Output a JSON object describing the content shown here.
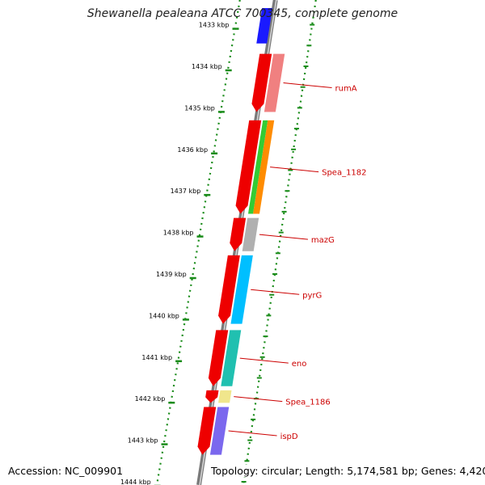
{
  "title": "Shewanella pealeana ATCC 700345, complete genome",
  "footer": {
    "accession": "Accession: NC_009901",
    "topology": "Topology: circular; Length: 5,174,581 bp; Genes: 4,420"
  },
  "ruler": {
    "unit": "kbp",
    "ticks": [
      {
        "value": 1433,
        "label": "1433 kbp"
      },
      {
        "value": 1434,
        "label": "1434 kbp"
      },
      {
        "value": 1435,
        "label": "1435 kbp"
      },
      {
        "value": 1436,
        "label": "1436 kbp"
      },
      {
        "value": 1437,
        "label": "1437 kbp"
      },
      {
        "value": 1438,
        "label": "1438 kbp"
      },
      {
        "value": 1439,
        "label": "1439 kbp"
      },
      {
        "value": 1440,
        "label": "1440 kbp"
      },
      {
        "value": 1441,
        "label": "1441 kbp"
      },
      {
        "value": 1442,
        "label": "1442 kbp"
      },
      {
        "value": 1443,
        "label": "1443 kbp"
      },
      {
        "value": 1444,
        "label": "1444 kbp"
      }
    ]
  },
  "genes": [
    {
      "label": "",
      "start_kbp": 1432.6,
      "end_kbp": 1433.45,
      "color": "#1a1aff"
    },
    {
      "label": "rumA",
      "start_kbp": 1433.7,
      "end_kbp": 1435.1,
      "color": "#f08080"
    },
    {
      "label": "Spea_1182",
      "start_kbp": 1435.3,
      "end_kbp": 1437.55,
      "color": "#ff8c00"
    },
    {
      "label": "",
      "start_kbp": 1435.3,
      "end_kbp": 1437.55,
      "color": "#33cc33"
    },
    {
      "label": "mazG",
      "start_kbp": 1437.65,
      "end_kbp": 1438.45,
      "color": "#b0b0b0"
    },
    {
      "label": "pyrG",
      "start_kbp": 1438.55,
      "end_kbp": 1440.2,
      "color": "#00bfff"
    },
    {
      "label": "eno",
      "start_kbp": 1440.35,
      "end_kbp": 1441.7,
      "color": "#20c0b0"
    },
    {
      "label": "Spea_1186",
      "start_kbp": 1441.8,
      "end_kbp": 1442.1,
      "color": "#f0e68c"
    },
    {
      "label": "ispD",
      "start_kbp": 1442.2,
      "end_kbp": 1443.35,
      "color": "#7b68ee"
    }
  ]
}
